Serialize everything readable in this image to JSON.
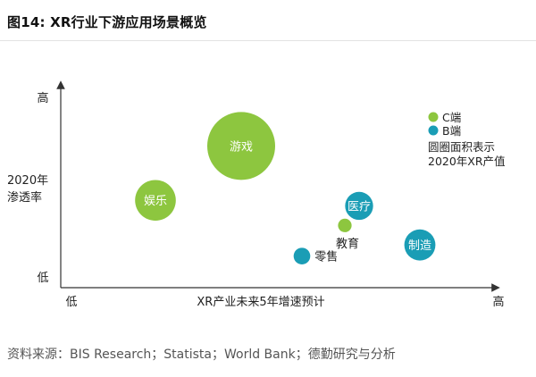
{
  "title": "图14: XR行业下游应用场景概览",
  "source": "资料来源：BIS Research；Statista；World Bank；德勤研究与分析",
  "colors": {
    "c_end": "#8dc63f",
    "b_end": "#1a9db5",
    "axis": "#333333"
  },
  "chart_data": {
    "type": "bubble",
    "xlabel": "XR产业未来5年增速预计",
    "ylabel": [
      "2020年",
      "渗透率"
    ],
    "x_ticks": {
      "low": "低",
      "high": "高"
    },
    "y_ticks": {
      "low": "低",
      "high": "高"
    },
    "xlim": [
      0,
      100
    ],
    "ylim": [
      0,
      100
    ],
    "legend": {
      "position": "top-right",
      "items": [
        {
          "label": "C端",
          "color": "#8dc63f"
        },
        {
          "label": "B端",
          "color": "#1a9db5"
        }
      ],
      "note": [
        "圆圈面积表示",
        "2020年XR产值"
      ]
    },
    "points": [
      {
        "name": "游戏",
        "series": "C端",
        "x": 45,
        "y": 85,
        "size": 100
      },
      {
        "name": "娱乐",
        "series": "C端",
        "x": 21,
        "y": 46,
        "size": 36
      },
      {
        "name": "教育",
        "series": "C端",
        "x": 74,
        "y": 28,
        "size": 4
      },
      {
        "name": "医疗",
        "series": "B端",
        "x": 78,
        "y": 42,
        "size": 17
      },
      {
        "name": "零售",
        "series": "B端",
        "x": 62,
        "y": 6,
        "size": 6
      },
      {
        "name": "制造",
        "series": "B端",
        "x": 95,
        "y": 14,
        "size": 21
      }
    ]
  }
}
